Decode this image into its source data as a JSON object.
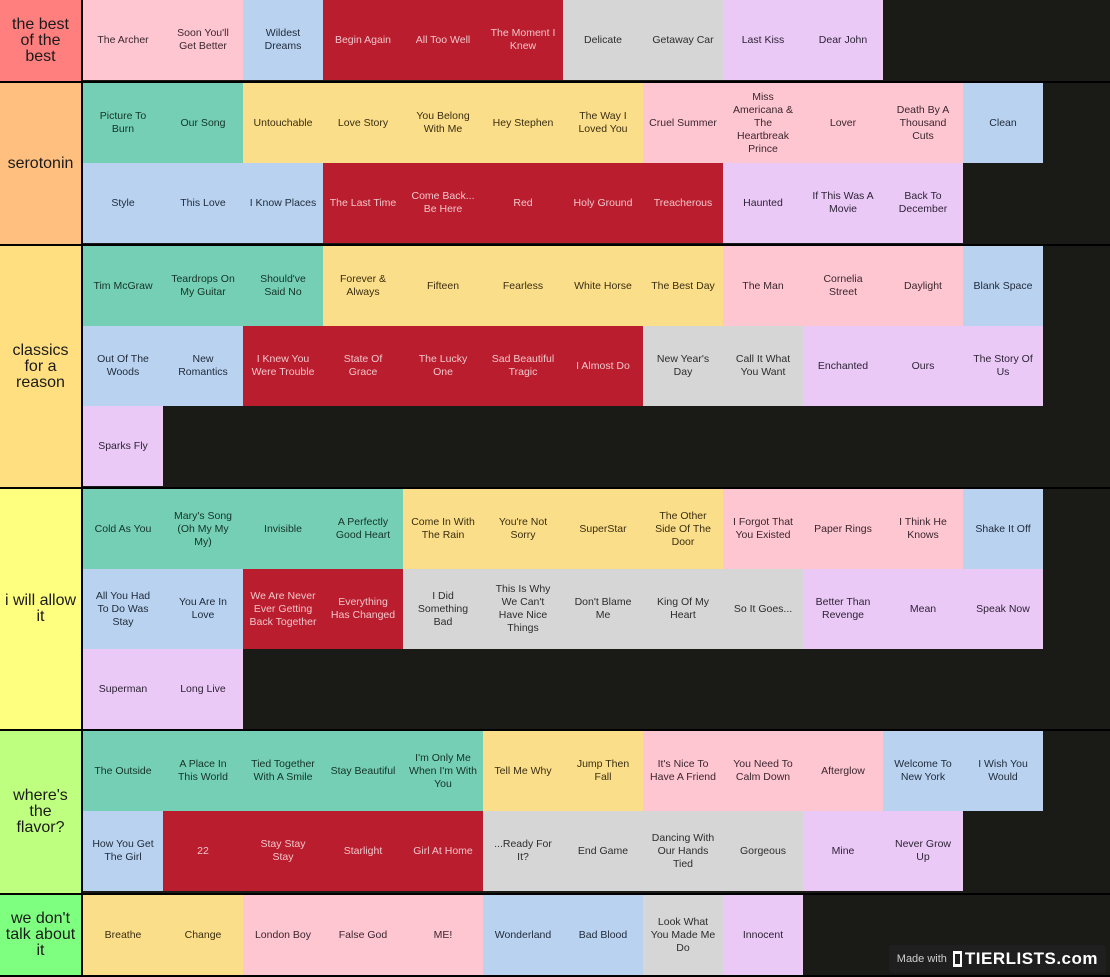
{
  "tiers": [
    {
      "label": "the best of the best",
      "color": "#ff7f7f",
      "items": [
        {
          "t": "The Archer",
          "c": "pink"
        },
        {
          "t": "Soon You'll Get Better",
          "c": "pink"
        },
        {
          "t": "Wildest Dreams",
          "c": "blue"
        },
        {
          "t": "Begin Again",
          "c": "red"
        },
        {
          "t": "All Too Well",
          "c": "red"
        },
        {
          "t": "The Moment I Knew",
          "c": "red"
        },
        {
          "t": "Delicate",
          "c": "grey"
        },
        {
          "t": "Getaway Car",
          "c": "grey"
        },
        {
          "t": "Last Kiss",
          "c": "lilac"
        },
        {
          "t": "Dear John",
          "c": "lilac"
        }
      ]
    },
    {
      "label": "serotonin",
      "color": "#ffbf7f",
      "items": [
        {
          "t": "Picture To Burn",
          "c": "teal"
        },
        {
          "t": "Our Song",
          "c": "teal"
        },
        {
          "t": "Untouchable",
          "c": "yellow"
        },
        {
          "t": "Love Story",
          "c": "yellow"
        },
        {
          "t": "You Belong With Me",
          "c": "yellow"
        },
        {
          "t": "Hey Stephen",
          "c": "yellow"
        },
        {
          "t": "The Way I Loved You",
          "c": "yellow"
        },
        {
          "t": "Cruel Summer",
          "c": "pink"
        },
        {
          "t": "Miss Americana & The Heartbreak Prince",
          "c": "pink"
        },
        {
          "t": "Lover",
          "c": "pink"
        },
        {
          "t": "Death By A Thousand Cuts",
          "c": "pink"
        },
        {
          "t": "Clean",
          "c": "blue"
        },
        {
          "t": "Style",
          "c": "blue"
        },
        {
          "t": "This Love",
          "c": "blue"
        },
        {
          "t": "I Know Places",
          "c": "blue"
        },
        {
          "t": "The Last Time",
          "c": "red"
        },
        {
          "t": "Come Back... Be Here",
          "c": "red"
        },
        {
          "t": "Red",
          "c": "red"
        },
        {
          "t": "Holy Ground",
          "c": "red"
        },
        {
          "t": "Treacherous",
          "c": "red"
        },
        {
          "t": "Haunted",
          "c": "lilac"
        },
        {
          "t": "If This Was A Movie",
          "c": "lilac"
        },
        {
          "t": "Back To December",
          "c": "lilac"
        }
      ]
    },
    {
      "label": "classics for a reason",
      "color": "#ffdf7f",
      "items": [
        {
          "t": "Tim McGraw",
          "c": "teal"
        },
        {
          "t": "Teardrops On My Guitar",
          "c": "teal"
        },
        {
          "t": "Should've Said No",
          "c": "teal"
        },
        {
          "t": "Forever & Always",
          "c": "yellow"
        },
        {
          "t": "Fifteen",
          "c": "yellow"
        },
        {
          "t": "Fearless",
          "c": "yellow"
        },
        {
          "t": "White Horse",
          "c": "yellow"
        },
        {
          "t": "The Best Day",
          "c": "yellow"
        },
        {
          "t": "The Man",
          "c": "pink"
        },
        {
          "t": "Cornelia Street",
          "c": "pink"
        },
        {
          "t": "Daylight",
          "c": "pink"
        },
        {
          "t": "Blank Space",
          "c": "blue"
        },
        {
          "t": "Out Of The Woods",
          "c": "blue"
        },
        {
          "t": "New Romantics",
          "c": "blue"
        },
        {
          "t": "I Knew You Were Trouble",
          "c": "red"
        },
        {
          "t": "State Of Grace",
          "c": "red"
        },
        {
          "t": "The Lucky One",
          "c": "red"
        },
        {
          "t": "Sad Beautiful Tragic",
          "c": "red"
        },
        {
          "t": "I Almost Do",
          "c": "red"
        },
        {
          "t": "New Year's Day",
          "c": "grey"
        },
        {
          "t": "Call It What You Want",
          "c": "grey"
        },
        {
          "t": "Enchanted",
          "c": "lilac"
        },
        {
          "t": "Ours",
          "c": "lilac"
        },
        {
          "t": "The Story Of Us",
          "c": "lilac"
        },
        {
          "t": "Sparks Fly",
          "c": "lilac"
        }
      ]
    },
    {
      "label": "i will allow it",
      "color": "#ffff7f",
      "items": [
        {
          "t": "Cold As You",
          "c": "teal"
        },
        {
          "t": "Mary's Song (Oh My My My)",
          "c": "teal"
        },
        {
          "t": "Invisible",
          "c": "teal"
        },
        {
          "t": "A Perfectly Good Heart",
          "c": "teal"
        },
        {
          "t": "Come In With The Rain",
          "c": "yellow"
        },
        {
          "t": "You're Not Sorry",
          "c": "yellow"
        },
        {
          "t": "SuperStar",
          "c": "yellow"
        },
        {
          "t": "The Other Side Of The Door",
          "c": "yellow"
        },
        {
          "t": "I Forgot That You Existed",
          "c": "pink"
        },
        {
          "t": "Paper Rings",
          "c": "pink"
        },
        {
          "t": "I Think He Knows",
          "c": "pink"
        },
        {
          "t": "Shake It Off",
          "c": "blue"
        },
        {
          "t": "All You Had To Do Was Stay",
          "c": "blue"
        },
        {
          "t": "You Are In Love",
          "c": "blue"
        },
        {
          "t": "We Are Never Ever Getting Back Together",
          "c": "red"
        },
        {
          "t": "Everything Has Changed",
          "c": "red"
        },
        {
          "t": "I Did Something Bad",
          "c": "grey"
        },
        {
          "t": "This Is Why We Can't Have Nice Things",
          "c": "grey"
        },
        {
          "t": "Don't Blame Me",
          "c": "grey"
        },
        {
          "t": "King Of My Heart",
          "c": "grey"
        },
        {
          "t": "So It Goes...",
          "c": "grey"
        },
        {
          "t": "Better Than Revenge",
          "c": "lilac"
        },
        {
          "t": "Mean",
          "c": "lilac"
        },
        {
          "t": "Speak Now",
          "c": "lilac"
        },
        {
          "t": "Superman",
          "c": "lilac"
        },
        {
          "t": "Long Live",
          "c": "lilac"
        }
      ]
    },
    {
      "label": "where's the flavor?",
      "color": "#bfff7f",
      "items": [
        {
          "t": "The Outside",
          "c": "teal"
        },
        {
          "t": "A Place In This World",
          "c": "teal"
        },
        {
          "t": "Tied Together With A Smile",
          "c": "teal"
        },
        {
          "t": "Stay Beautiful",
          "c": "teal"
        },
        {
          "t": "I'm Only Me When I'm With You",
          "c": "teal"
        },
        {
          "t": "Tell Me Why",
          "c": "yellow"
        },
        {
          "t": "Jump Then Fall",
          "c": "yellow"
        },
        {
          "t": "It's Nice To Have A Friend",
          "c": "pink"
        },
        {
          "t": "You Need To Calm Down",
          "c": "pink"
        },
        {
          "t": "Afterglow",
          "c": "pink"
        },
        {
          "t": "Welcome To New York",
          "c": "blue"
        },
        {
          "t": "I Wish You Would",
          "c": "blue"
        },
        {
          "t": "How You Get The Girl",
          "c": "blue"
        },
        {
          "t": "22",
          "c": "red"
        },
        {
          "t": "Stay Stay Stay",
          "c": "red"
        },
        {
          "t": "Starlight",
          "c": "red"
        },
        {
          "t": "Girl At Home",
          "c": "red"
        },
        {
          "t": "...Ready For It?",
          "c": "grey"
        },
        {
          "t": "End Game",
          "c": "grey"
        },
        {
          "t": "Dancing With Our Hands Tied",
          "c": "grey"
        },
        {
          "t": "Gorgeous",
          "c": "grey"
        },
        {
          "t": "Mine",
          "c": "lilac"
        },
        {
          "t": "Never Grow Up",
          "c": "lilac"
        }
      ]
    },
    {
      "label": "we don't talk about it",
      "color": "#7fff7f",
      "items": [
        {
          "t": "Breathe",
          "c": "yellow"
        },
        {
          "t": "Change",
          "c": "yellow"
        },
        {
          "t": "London Boy",
          "c": "pink"
        },
        {
          "t": "False God",
          "c": "pink"
        },
        {
          "t": "ME!",
          "c": "pink"
        },
        {
          "t": "Wonderland",
          "c": "blue"
        },
        {
          "t": "Bad Blood",
          "c": "blue"
        },
        {
          "t": "Look What You Made Me Do",
          "c": "grey"
        },
        {
          "t": "Innocent",
          "c": "lilac"
        }
      ]
    }
  ],
  "watermark": {
    "made_with": "Made with",
    "brand": "TIERLISTS.com"
  }
}
